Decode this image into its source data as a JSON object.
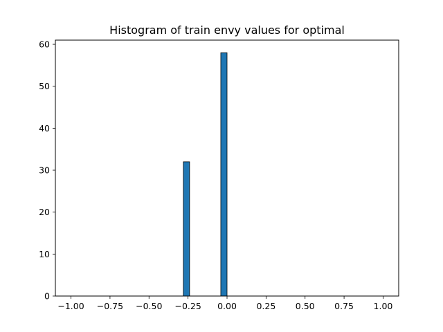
{
  "chart_data": {
    "type": "bar",
    "title": "Histogram of train envy values for optimal",
    "xlabel": "",
    "ylabel": "",
    "xlim": [
      -1.1,
      1.1
    ],
    "ylim": [
      0,
      61
    ],
    "x_ticks": [
      -1.0,
      -0.75,
      -0.5,
      -0.25,
      0.0,
      0.25,
      0.5,
      0.75,
      1.0
    ],
    "x_tick_labels": [
      "−1.00",
      "−0.75",
      "−0.50",
      "−0.25",
      "0.00",
      "0.25",
      "0.50",
      "0.75",
      "1.00"
    ],
    "y_ticks": [
      0,
      10,
      20,
      30,
      40,
      50,
      60
    ],
    "y_tick_labels": [
      "0",
      "10",
      "20",
      "30",
      "40",
      "50",
      "60"
    ],
    "bin_width": 0.04,
    "bins": [
      {
        "x0": -0.28,
        "x1": -0.24,
        "count": 32
      },
      {
        "x0": -0.04,
        "x1": 0.0,
        "count": 58
      }
    ],
    "bar_color": "#1f77b4",
    "edge_color": "#000000",
    "grid": false,
    "legend": "none"
  }
}
